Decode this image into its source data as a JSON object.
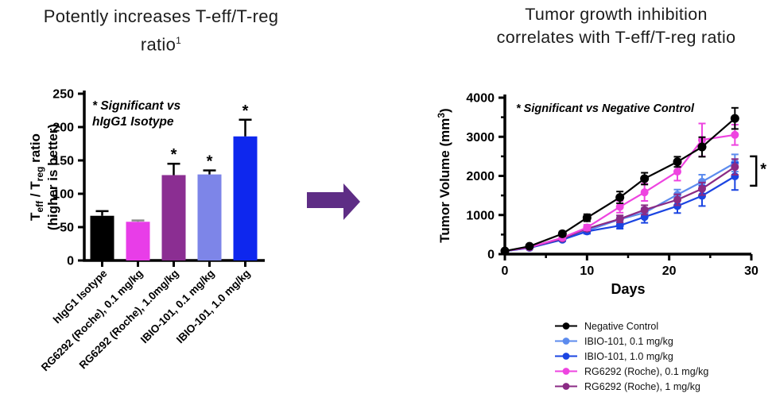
{
  "slide": {
    "left_title": {
      "line1": "Potently increases T-eff/T-reg",
      "line2": "ratio",
      "superscript": "1"
    },
    "right_title": {
      "line1": "Tumor growth inhibition",
      "line2": "correlates with T-eff/T-reg ratio"
    },
    "arrow_color": "#5E2D85"
  },
  "chart_data": [
    {
      "type": "bar",
      "annotation_line1": "* Significant vs",
      "annotation_line2": "hIgG1 Isotype",
      "ylabel_rich": [
        {
          "t": "T"
        },
        {
          "t": "eff",
          "sub": true
        },
        {
          "t": " / T"
        },
        {
          "t": "reg",
          "sub": true
        },
        {
          "t": " ratio"
        }
      ],
      "ylabel_line2": "(higher is better)",
      "ylim": [
        0,
        250
      ],
      "yticks": [
        0,
        50,
        100,
        150,
        200,
        250
      ],
      "categories": [
        "hIgG1 Isotype",
        "RG6292 (Roche), 0.1 mg/kg",
        "RG6292 (Roche), 1.0mg/kg",
        "IBIO-101, 0.1 mg/kg",
        "IBIO-101, 1.0 mg/kg"
      ],
      "values": [
        67,
        58,
        128,
        129,
        186
      ],
      "errors": [
        7,
        2,
        17,
        6,
        25
      ],
      "significant": [
        false,
        false,
        true,
        true,
        true
      ],
      "sig_marker": "*",
      "bar_colors": [
        "#000000",
        "#E83DE8",
        "#8B2E92",
        "#7D85E8",
        "#0E27EE"
      ],
      "error_colors": [
        "#000000",
        "#8C8C8C",
        "#000000",
        "#000000",
        "#000000"
      ]
    },
    {
      "type": "line",
      "annotation": "* Significant vs Negative Control",
      "xlabel": "Days",
      "ylabel_rich": [
        {
          "t": "Tumor Volume (mm"
        },
        {
          "t": "3",
          "sup": true
        },
        {
          "t": ")"
        }
      ],
      "ylim": [
        0,
        4000
      ],
      "yticks": [
        0,
        1000,
        2000,
        3000,
        4000
      ],
      "yticks_minor": [
        500,
        1500,
        2500,
        3500
      ],
      "xlim": [
        0,
        30
      ],
      "xticks": [
        0,
        10,
        20,
        30
      ],
      "xticks_minor": [
        5,
        15,
        25
      ],
      "x": [
        0,
        3,
        7,
        10,
        14,
        17,
        21,
        24,
        28
      ],
      "series": [
        {
          "name": "Negative Control",
          "color": "#000000",
          "marker_r": 5.5,
          "values": [
            80,
            200,
            520,
            930,
            1450,
            1930,
            2360,
            2740,
            3470
          ],
          "errors": [
            40,
            40,
            60,
            90,
            150,
            150,
            130,
            250,
            270
          ]
        },
        {
          "name": "IBIO-101, 0.1 mg/kg",
          "color": "#5C8BEE",
          "marker_r": 5,
          "values": [
            75,
            165,
            380,
            600,
            890,
            1060,
            1520,
            1850,
            2330
          ],
          "errors": [
            30,
            30,
            40,
            60,
            90,
            120,
            130,
            180,
            220
          ]
        },
        {
          "name": "IBIO-101, 1.0 mg/kg",
          "color": "#1B45E2",
          "marker_r": 5,
          "values": [
            75,
            160,
            370,
            580,
            730,
            950,
            1230,
            1490,
            1990
          ],
          "errors": [
            30,
            30,
            40,
            60,
            80,
            150,
            180,
            260,
            350
          ]
        },
        {
          "name": "RG6292 (Roche), 0.1 mg/kg",
          "color": "#EE44E0",
          "marker_r": 5,
          "values": [
            80,
            175,
            420,
            680,
            1210,
            1580,
            2110,
            2920,
            3050
          ],
          "errors": [
            30,
            30,
            50,
            70,
            150,
            220,
            230,
            420,
            260
          ]
        },
        {
          "name": "RG6292 (Roche), 1 mg/kg",
          "color": "#8B2B85",
          "marker_r": 5,
          "values": [
            80,
            170,
            400,
            650,
            900,
            1130,
            1390,
            1670,
            2230
          ],
          "errors": [
            30,
            30,
            40,
            60,
            90,
            120,
            140,
            160,
            200
          ]
        }
      ],
      "draw_order": [
        1,
        2,
        4,
        3,
        0
      ],
      "bracket": {
        "day": 30.6,
        "from": 2500,
        "to": 1750,
        "label": "*"
      },
      "legend_position": "bottom-right"
    }
  ]
}
